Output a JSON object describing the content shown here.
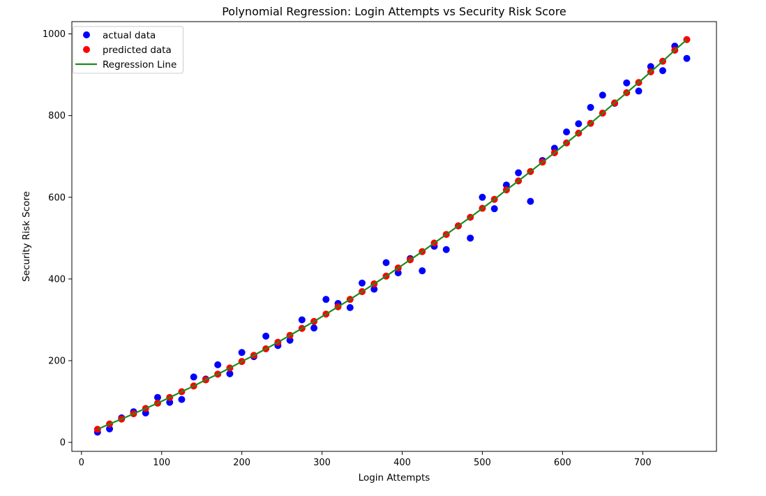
{
  "chart_data": {
    "type": "scatter",
    "title": "Polynomial Regression: Login Attempts vs Security Risk Score",
    "xlabel": "Login Attempts",
    "ylabel": "Security Risk Score",
    "xlim": [
      -12,
      792
    ],
    "ylim": [
      -22,
      1030
    ],
    "xticks": [
      0,
      100,
      200,
      300,
      400,
      500,
      600,
      700
    ],
    "yticks": [
      0,
      200,
      400,
      600,
      800,
      1000
    ],
    "grid": false,
    "legend_position": "upper-left",
    "x": [
      20,
      35,
      50,
      65,
      80,
      95,
      110,
      125,
      140,
      155,
      170,
      185,
      200,
      215,
      230,
      245,
      260,
      275,
      290,
      305,
      320,
      335,
      350,
      365,
      380,
      395,
      410,
      425,
      440,
      455,
      470,
      485,
      500,
      515,
      530,
      545,
      560,
      575,
      590,
      605,
      620,
      635,
      650,
      665,
      680,
      695,
      710,
      725,
      740,
      755
    ],
    "series": [
      {
        "name": "actual data",
        "kind": "scatter",
        "color": "#0000ff",
        "values": [
          25,
          33,
          60,
          75,
          72,
          110,
          98,
          105,
          160,
          155,
          190,
          168,
          220,
          210,
          260,
          237,
          250,
          300,
          280,
          350,
          340,
          330,
          390,
          375,
          440,
          415,
          450,
          420,
          480,
          472,
          530,
          500,
          600,
          572,
          630,
          660,
          590,
          690,
          720,
          760,
          780,
          820,
          850,
          830,
          880,
          860,
          920,
          910,
          970,
          940
        ]
      },
      {
        "name": "predicted data",
        "kind": "scatter",
        "color": "#ff0000",
        "values": [
          32,
          45,
          57,
          70,
          83,
          96,
          110,
          124,
          138,
          153,
          167,
          182,
          198,
          213,
          229,
          245,
          262,
          279,
          296,
          314,
          332,
          350,
          369,
          388,
          407,
          427,
          447,
          467,
          488,
          509,
          530,
          551,
          573,
          595,
          618,
          640,
          663,
          686,
          709,
          733,
          757,
          781,
          806,
          831,
          856,
          881,
          907,
          933,
          960,
          986
        ]
      },
      {
        "name": "Regression Line",
        "kind": "line",
        "color": "#1e8a1e",
        "values": [
          32,
          45,
          57,
          70,
          83,
          96,
          110,
          124,
          138,
          153,
          167,
          182,
          198,
          213,
          229,
          245,
          262,
          279,
          296,
          314,
          332,
          350,
          369,
          388,
          407,
          427,
          447,
          467,
          488,
          509,
          530,
          551,
          573,
          595,
          618,
          640,
          663,
          686,
          709,
          733,
          757,
          781,
          806,
          831,
          856,
          881,
          907,
          933,
          960,
          986
        ]
      }
    ]
  }
}
